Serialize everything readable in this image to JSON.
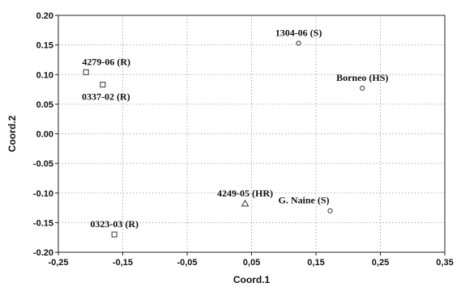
{
  "chart_data": {
    "type": "scatter",
    "title": "",
    "xlabel": "Coord.1",
    "ylabel": "Coord.2",
    "xlim": [
      -0.25,
      0.35
    ],
    "ylim": [
      -0.2,
      0.2
    ],
    "grid": true,
    "x_ticks": [
      "-0,25",
      "-0,15",
      "-0,05",
      "0,05",
      "0,15",
      "0,25",
      "0,35"
    ],
    "y_ticks": [
      "0.20",
      "0.15",
      "0.10",
      "0.05",
      "0.00",
      "-0.05",
      "-0.10",
      "-0.15",
      "-0.20"
    ],
    "points": [
      {
        "label": "1304-06 (S)",
        "x": 0.123,
        "y": 0.153,
        "marker": "circle",
        "label_pos": "above-left"
      },
      {
        "label": "4279-06 (R)",
        "x": -0.207,
        "y": 0.104,
        "marker": "square",
        "label_pos": "above-left"
      },
      {
        "label": "0337-02 (R)",
        "x": -0.181,
        "y": 0.083,
        "marker": "square",
        "label_pos": "below"
      },
      {
        "label": "Borneo (HS)",
        "x": 0.222,
        "y": 0.077,
        "marker": "circle",
        "label_pos": "above"
      },
      {
        "label": "4249-05 (HR)",
        "x": 0.04,
        "y": -0.118,
        "marker": "triangle",
        "label_pos": "above"
      },
      {
        "label": "G. Naine (S)",
        "x": 0.172,
        "y": -0.13,
        "marker": "circle",
        "label_pos": "above-left"
      },
      {
        "label": "0323-03 (R)",
        "x": -0.163,
        "y": -0.17,
        "marker": "square",
        "label_pos": "above"
      }
    ]
  }
}
